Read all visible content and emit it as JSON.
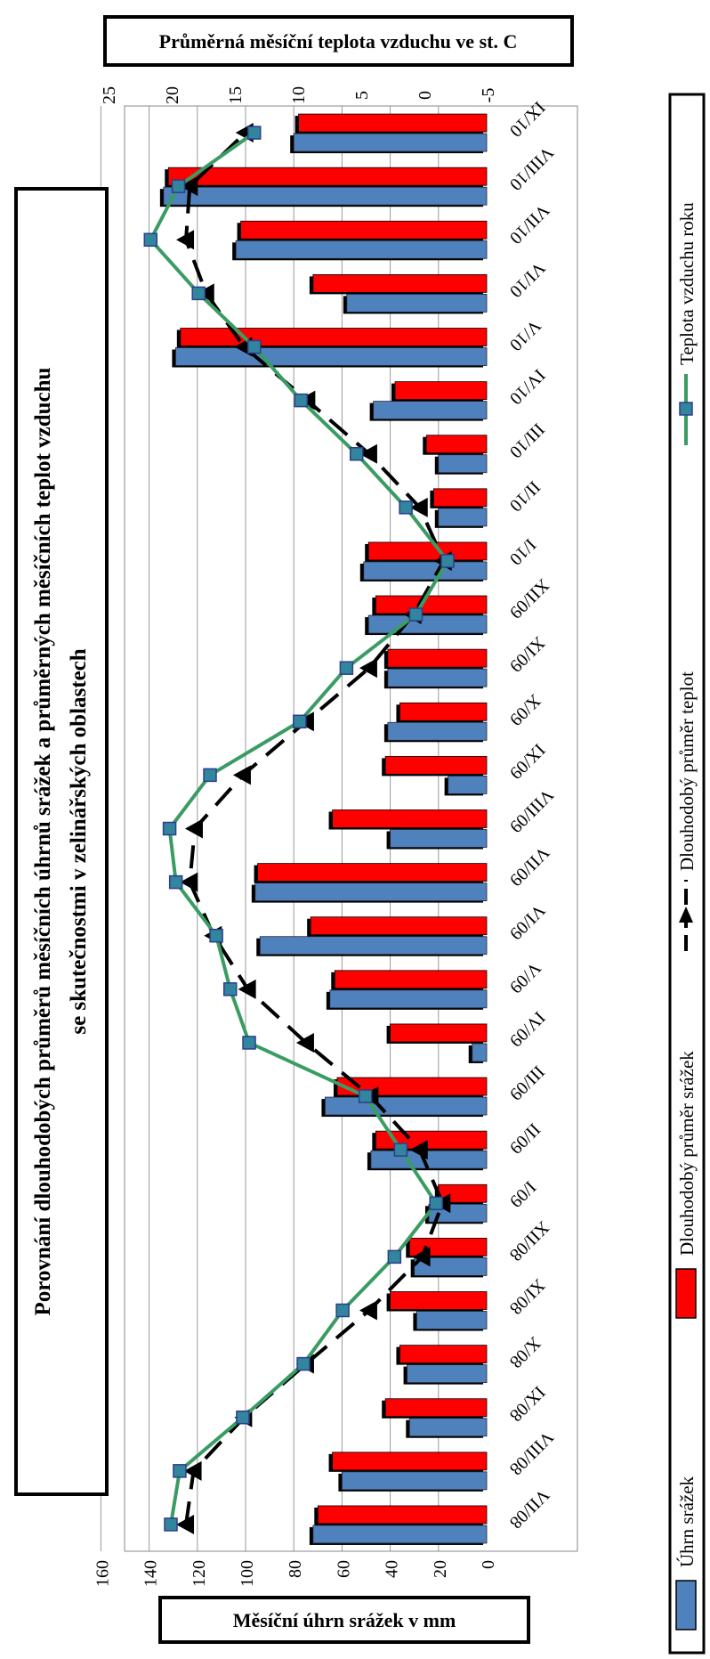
{
  "chart_data": {
    "type": "bar",
    "orientation": "rotated 90 degrees (categories along vertical page axis)",
    "title_line1": "Porovnání dlouhodobých průměrů měsíčních úhrnů srážek a průměrných měsíčních teplot vzduchu",
    "title_line2": "se skutečnostmi v zelinářských oblastech",
    "temp_axis_label": "Průměrná měsíční teplota vzduchu ve st. C",
    "precip_axis_label": "Měsíční úhrn srážek v mm",
    "precip_range": [
      0,
      160
    ],
    "precip_ticks": [
      "0",
      "20",
      "40",
      "60",
      "80",
      "100",
      "120",
      "140",
      "160"
    ],
    "temp_range": [
      -5,
      25
    ],
    "temp_ticks": [
      "-5",
      "0",
      "5",
      "10",
      "15",
      "20",
      "25"
    ],
    "grid": true,
    "legend_position": "bottom (rotated)",
    "categories": [
      "VII/08",
      "VIII/08",
      "IX/08",
      "X/08",
      "XI/08",
      "XII/08",
      "I/09",
      "II/09",
      "III/09",
      "IV/09",
      "V/09",
      "VI/09",
      "VII/09",
      "VIII/09",
      "IX/09",
      "X/09",
      "XI/09",
      "XII/09",
      "I/10",
      "II/10",
      "III/10",
      "IV/10",
      "V/10",
      "VI/10",
      "VII/10",
      "VIII/10",
      "IX/10"
    ],
    "series": [
      {
        "name": "Úhrn srážek",
        "kind": "bar",
        "color": "#4f81bd",
        "values": [
          72,
          60,
          32,
          33,
          29,
          30,
          24,
          48,
          67,
          6,
          65,
          94,
          96,
          40,
          16,
          41,
          41,
          49,
          51,
          20,
          20,
          47,
          129,
          58,
          104,
          134,
          80
        ]
      },
      {
        "name": "Dlouhodobý průměr srážek",
        "kind": "bar-shadow",
        "color": "#000000",
        "values": [
          70,
          64,
          42,
          36,
          40,
          32,
          20,
          46,
          62,
          40,
          63,
          73,
          95,
          64,
          42,
          36,
          41,
          46,
          49,
          22,
          25,
          38,
          127,
          72,
          102,
          132,
          78
        ]
      },
      {
        "name": "Dlouhodobý průměr teplot",
        "kind": "line",
        "color": "#000000",
        "values": [
          18.8,
          18.2,
          14.2,
          9.3,
          4.3,
          0.1,
          -1.5,
          0.3,
          4.2,
          9.3,
          13.9,
          16.6,
          18.5,
          18.1,
          14.3,
          9.3,
          4.3,
          0.8,
          -1.6,
          0.3,
          4.3,
          9.2,
          14.2,
          17.2,
          18.8,
          18.5,
          14.1
        ]
      },
      {
        "name": "Teplota vzduchu roku",
        "kind": "line",
        "color": "#3a9c63",
        "values": [
          20.0,
          19.3,
          14.3,
          9.5,
          6.4,
          2.3,
          -1.0,
          1.8,
          4.6,
          13.8,
          15.3,
          16.4,
          19.6,
          20.1,
          16.9,
          9.8,
          6.1,
          0.6,
          -1.9,
          1.4,
          5.3,
          9.7,
          13.4,
          17.8,
          21.6,
          19.4,
          13.4
        ]
      }
    ]
  }
}
